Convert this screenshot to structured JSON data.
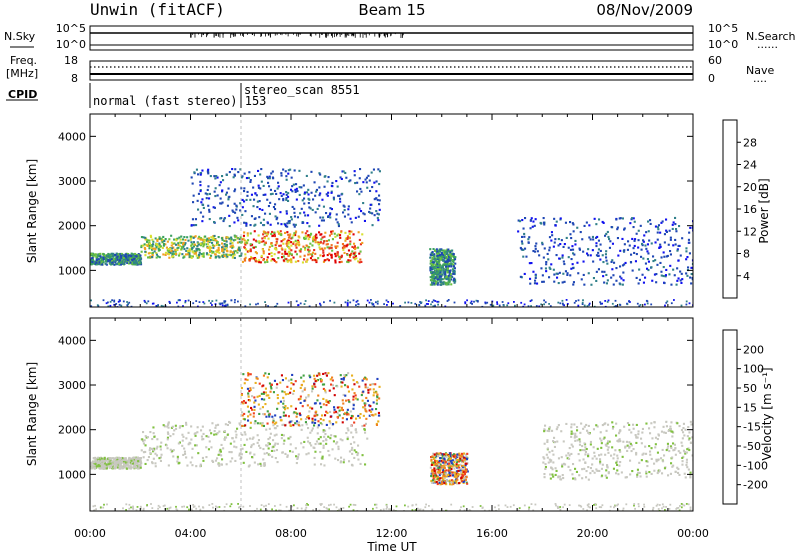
{
  "header": {
    "site": "Unwin (fitACF)",
    "beam": "Beam 15",
    "date": "08/Nov/2009"
  },
  "status_panels": {
    "nsky_label": "N.Sky",
    "nsearch_label": "N.Search",
    "nsky_ticks": [
      "10^5",
      "10^0"
    ],
    "nsearch_ticks": [
      "10^5",
      "10^0"
    ],
    "freq_label": "Freq.",
    "freq_unit": "[MHz]",
    "freq_ticks": [
      "18",
      "8"
    ],
    "nave_label": "Nave",
    "nave_ticks": [
      "60",
      "0"
    ],
    "cpid_label": "CPID",
    "cpid_segments": [
      "normal (fast stereo) 153",
      "stereo_scan 8551"
    ],
    "legend_dots": "......",
    "legend_dots_short": "...."
  },
  "chart_data": [
    {
      "type": "heatmap",
      "name": "power",
      "xlabel": "",
      "ylabel": "Slant Range [km]",
      "xlim": [
        0,
        24
      ],
      "ylim": [
        180,
        4500
      ],
      "yticks": [
        "1000",
        "2000",
        "3000",
        "4000"
      ],
      "colorbar": {
        "label": "Power [dB]",
        "ticks": [
          "4",
          "8",
          "12",
          "16",
          "20",
          "24",
          "28"
        ],
        "colors": [
          "#1010f0",
          "#1e46b4",
          "#30808a",
          "#3aa060",
          "#6ac040",
          "#d8e030",
          "#f0a020",
          "#f07020",
          "#e83020",
          "#e00000"
        ]
      },
      "regions": [
        {
          "t": [
            0.0,
            2.0
          ],
          "r": [
            1150,
            1400
          ],
          "level": "med"
        },
        {
          "t": [
            2.0,
            6.0
          ],
          "r": [
            1300,
            1800
          ],
          "level": "med-high"
        },
        {
          "t": [
            6.0,
            10.8
          ],
          "r": [
            1200,
            1900
          ],
          "level": "high"
        },
        {
          "t": [
            4.0,
            11.5
          ],
          "r": [
            2000,
            3300
          ],
          "level": "low"
        },
        {
          "t": [
            13.5,
            14.5
          ],
          "r": [
            700,
            1500
          ],
          "level": "med"
        },
        {
          "t": [
            17.0,
            24.0
          ],
          "r": [
            700,
            2200
          ],
          "level": "low"
        }
      ]
    },
    {
      "type": "heatmap",
      "name": "velocity",
      "xlabel": "Time UT",
      "ylabel": "Slant Range [km]",
      "xlim": [
        0,
        24
      ],
      "ylim": [
        180,
        4500
      ],
      "xticks": [
        "00:00",
        "04:00",
        "08:00",
        "12:00",
        "16:00",
        "20:00",
        "00:00"
      ],
      "yticks": [
        "1000",
        "2000",
        "3000",
        "4000"
      ],
      "colorbar": {
        "label": "Velocity [m s⁻¹]",
        "ticks": [
          "200",
          "100",
          "50",
          "15",
          "-15",
          "-50",
          "-100",
          "-200"
        ],
        "colors": [
          "#2040c0",
          "#2c7a7a",
          "#40a040",
          "#80c040",
          "#c8c8c0",
          "#e8b020",
          "#f08020",
          "#f04020",
          "#d00000"
        ]
      },
      "regions": [
        {
          "t": [
            0.0,
            2.0
          ],
          "r": [
            1150,
            1400
          ],
          "level": "ground"
        },
        {
          "t": [
            2.0,
            11.0
          ],
          "r": [
            1200,
            2200
          ],
          "level": "ground"
        },
        {
          "t": [
            6.0,
            11.5
          ],
          "r": [
            2100,
            3300
          ],
          "level": "mixed"
        },
        {
          "t": [
            13.5,
            15.0
          ],
          "r": [
            800,
            1500
          ],
          "level": "mixed"
        },
        {
          "t": [
            18.0,
            24.0
          ],
          "r": [
            900,
            2200
          ],
          "level": "ground"
        }
      ]
    }
  ]
}
